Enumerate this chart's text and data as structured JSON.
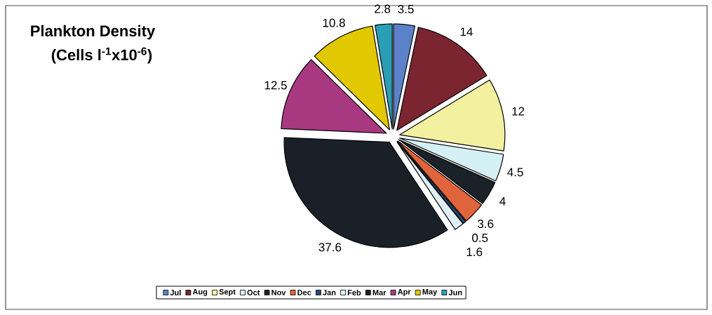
{
  "chart_data": {
    "type": "pie",
    "title": "Plankton Density",
    "subtitle": "(Cells l$^{-1}$x10$^{-6}$)",
    "categories": [
      "Jul",
      "Aug",
      "Sept",
      "Oct",
      "Nov",
      "Dec",
      "Jan",
      "Feb",
      "Mar",
      "Apr",
      "May",
      "Jun"
    ],
    "values": [
      3.5,
      14,
      12,
      4.5,
      4,
      3.6,
      0.5,
      1.6,
      37.6,
      12.5,
      10.8,
      2.8
    ],
    "colors": [
      "#5b82c8",
      "#7a2530",
      "#f3f0a0",
      "#d5f0f5",
      "#1a2128",
      "#e0643c",
      "#2a4a7a",
      "#dff0f5",
      "#1a2028",
      "#a8387f",
      "#e2c800",
      "#2a9fb5"
    ],
    "data_labels": true,
    "legend": "bottom"
  }
}
